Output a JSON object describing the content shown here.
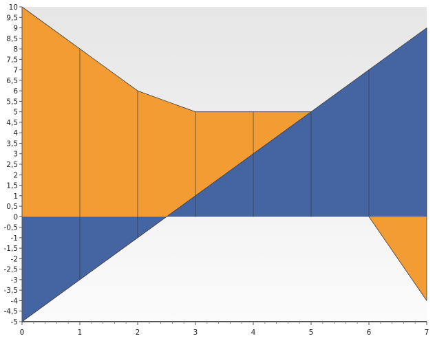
{
  "chart_data": {
    "type": "area",
    "x": [
      0,
      1,
      2,
      3,
      4,
      5,
      6,
      7
    ],
    "xlim": [
      0,
      7
    ],
    "ylim": [
      -5,
      10
    ],
    "xticks": [
      "0",
      "1",
      "2",
      "3",
      "4",
      "5",
      "6",
      "7"
    ],
    "yticks": [
      "-5",
      "-4,5",
      "-4",
      "-3,5",
      "-3",
      "-2,5",
      "-2",
      "-1,5",
      "-1",
      "-0,5",
      "0",
      "0,5",
      "1",
      "1,5",
      "2",
      "2,5",
      "3",
      "3,5",
      "4",
      "4,5",
      "5",
      "5,5",
      "6",
      "6,5",
      "7",
      "7,5",
      "8",
      "8,5",
      "9",
      "9,5",
      "10"
    ],
    "series": [
      {
        "values": [
          10,
          8,
          6,
          5,
          5,
          5,
          0,
          -4
        ],
        "color": "#f39c34"
      },
      {
        "values": [
          -5,
          -3,
          -1,
          1,
          3,
          5,
          7,
          9
        ],
        "color": "#4464a2"
      }
    ],
    "title": "",
    "xlabel": "",
    "ylabel": "",
    "legend": "none",
    "grid": false,
    "background_gradient": [
      "#e6e6e6",
      "#fbfbfb"
    ]
  }
}
